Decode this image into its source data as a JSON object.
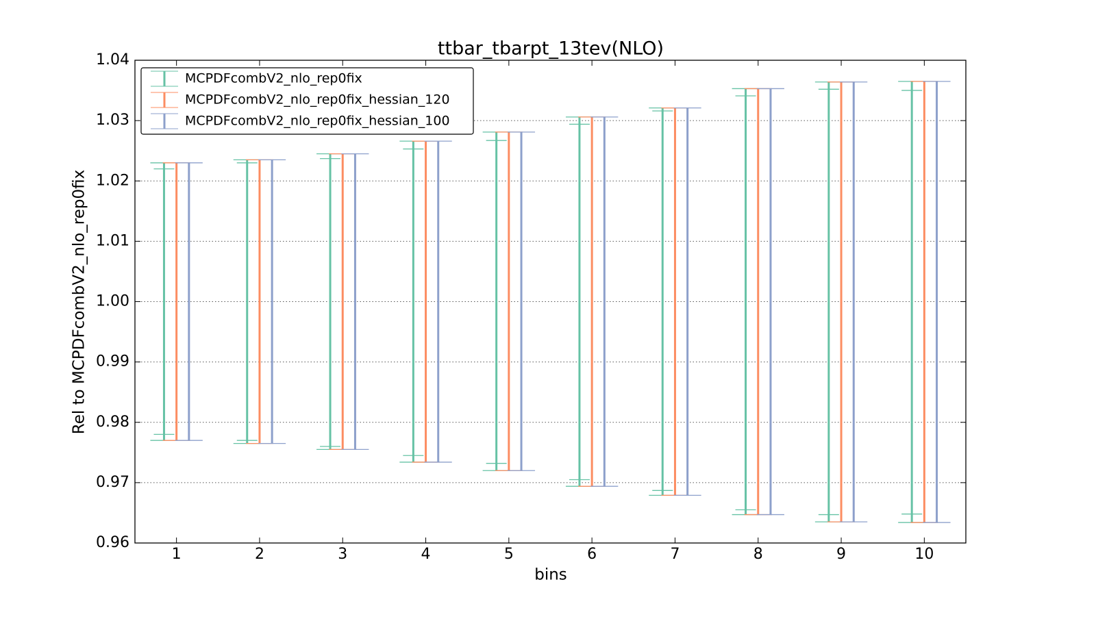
{
  "chart_data": {
    "type": "errorbar",
    "title": "ttbar_tbarpt_13tev(NLO)",
    "x_label": "bins",
    "y_label": "Rel to MCPDFcombV2_nlo_rep0fix",
    "x": [
      1,
      2,
      3,
      4,
      5,
      6,
      7,
      8,
      9,
      10
    ],
    "xlim": [
      0.5,
      10.5
    ],
    "xticks": [
      1,
      2,
      3,
      4,
      5,
      6,
      7,
      8,
      9,
      10
    ],
    "ylim": [
      0.96,
      1.04
    ],
    "yticks": [
      0.96,
      0.97,
      0.98,
      0.99,
      {
        "value": 1.0,
        "label": "1.00"
      },
      1.01,
      1.02,
      1.03,
      1.04
    ],
    "grid": true,
    "legend": "upper left",
    "series": [
      {
        "name": "MCPDFcombV2_nlo_rep0fix",
        "color": "#66c2a5",
        "upper": [
          1.023,
          1.0235,
          1.0245,
          1.0266,
          1.0281,
          1.0306,
          1.0321,
          1.0353,
          1.0364,
          1.0365
        ],
        "lower": [
          0.977,
          0.9765,
          0.9755,
          0.9734,
          0.972,
          0.9694,
          0.9679,
          0.9647,
          0.9635,
          0.9634
        ],
        "upper_inner": [
          1.022,
          1.023,
          1.0237,
          1.0253,
          1.0267,
          1.0294,
          1.0316,
          1.0341,
          1.0352,
          1.035
        ],
        "lower_inner": [
          0.978,
          0.977,
          0.976,
          0.9745,
          0.9732,
          0.9705,
          0.9687,
          0.9655,
          0.9647,
          0.9648
        ]
      },
      {
        "name": "MCPDFcombV2_nlo_rep0fix_hessian_120",
        "color": "#fc8d62",
        "upper": [
          1.023,
          1.0235,
          1.0245,
          1.0266,
          1.0281,
          1.0306,
          1.0321,
          1.0353,
          1.0364,
          1.0365
        ],
        "lower": [
          0.977,
          0.9765,
          0.9755,
          0.9734,
          0.972,
          0.9694,
          0.9679,
          0.9647,
          0.9635,
          0.9634
        ]
      },
      {
        "name": "MCPDFcombV2_nlo_rep0fix_hessian_100",
        "color": "#8da0cb",
        "upper": [
          1.023,
          1.0235,
          1.0245,
          1.0266,
          1.0281,
          1.0306,
          1.0321,
          1.0353,
          1.0364,
          1.0365
        ],
        "lower": [
          0.977,
          0.9765,
          0.9755,
          0.9734,
          0.972,
          0.9694,
          0.9679,
          0.9647,
          0.9635,
          0.9634
        ]
      }
    ]
  }
}
